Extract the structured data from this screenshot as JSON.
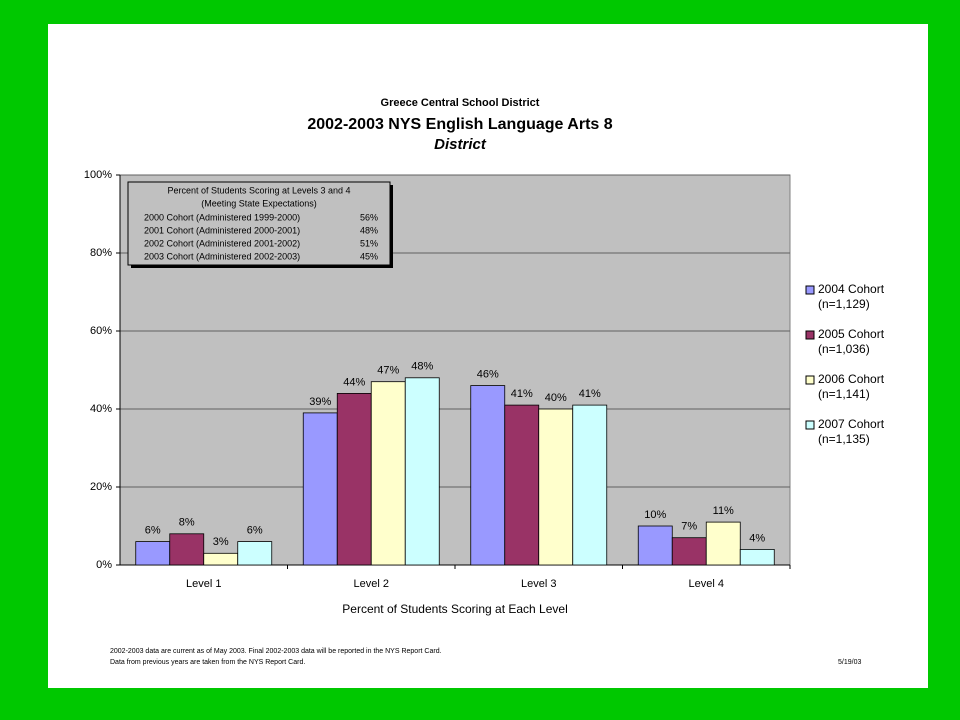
{
  "header": {
    "org": "Greece Central School District"
  },
  "chart_data": {
    "type": "bar",
    "title": "2002-2003 NYS English Language Arts 8",
    "subtitle": "District",
    "x_label": "Percent of Students Scoring at Each Level",
    "categories": [
      "Level 1",
      "Level 2",
      "Level 3",
      "Level 4"
    ],
    "series": [
      {
        "name": "2004 Cohort",
        "note": "(n=1,129)",
        "color": "#9999ff",
        "values": [
          6,
          39,
          46,
          10
        ],
        "value_labels": [
          "6%",
          "39%",
          "46%",
          "10%"
        ]
      },
      {
        "name": "2005 Cohort",
        "note": "(n=1,036)",
        "color": "#993366",
        "values": [
          8,
          44,
          41,
          7
        ],
        "value_labels": [
          "8%",
          "44%",
          "41%",
          "7%"
        ]
      },
      {
        "name": "2006 Cohort",
        "note": "(n=1,141)",
        "color": "#ffffcc",
        "values": [
          3,
          47,
          40,
          11
        ],
        "value_labels": [
          "3%",
          "47%",
          "40%",
          "11%"
        ]
      },
      {
        "name": "2007 Cohort",
        "note": "(n=1,135)",
        "color": "#ccffff",
        "values": [
          6,
          48,
          41,
          4
        ],
        "value_labels": [
          "6%",
          "48%",
          "41%",
          "4%"
        ]
      }
    ],
    "ylim": [
      0,
      100
    ],
    "yticks": [
      {
        "value": 0,
        "label": "0%"
      },
      {
        "value": 20,
        "label": "20%"
      },
      {
        "value": 40,
        "label": "40%"
      },
      {
        "value": 60,
        "label": "60%"
      },
      {
        "value": 80,
        "label": "80%"
      },
      {
        "value": 100,
        "label": "100%"
      }
    ],
    "grid": true,
    "legend": "right",
    "inset": {
      "title": [
        "Percent of Students Scoring at Levels 3 and 4",
        "(Meeting State Expectations)"
      ],
      "rows": [
        [
          "2000 Cohort (Administered 1999-2000)",
          "56%"
        ],
        [
          "2001 Cohort (Administered 2000-2001)",
          "48%"
        ],
        [
          "2002 Cohort (Administered 2001-2002)",
          "51%"
        ],
        [
          "2003 Cohort (Administered 2002-2003)",
          "45%"
        ]
      ]
    }
  },
  "footer": {
    "notes": [
      "2002-2003 data are current as of May 2003.  Final 2002-2003 data will be reported in the NYS Report Card.",
      "Data from previous years are taken from the NYS Report Card."
    ],
    "date": "5/19/03"
  }
}
